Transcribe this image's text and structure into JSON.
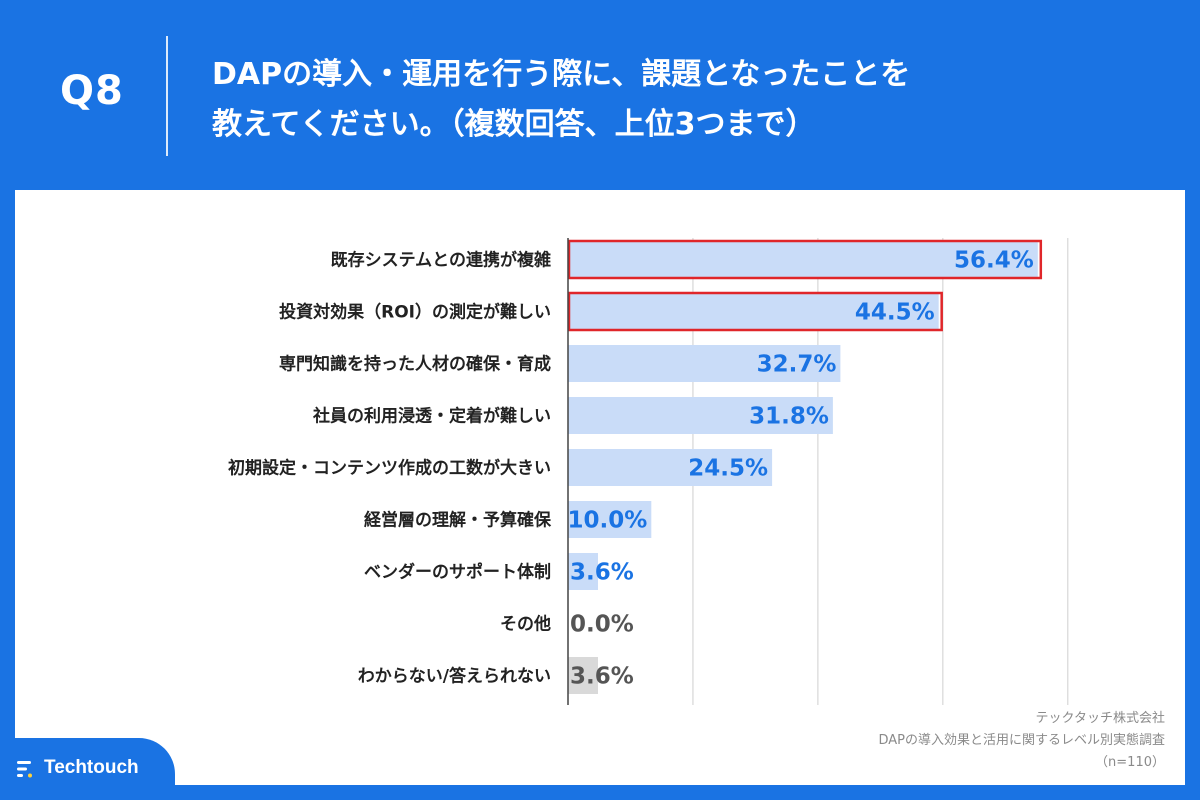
{
  "header": {
    "question_number": "Q8",
    "title_line1": "DAPの導入・運用を行う際に、課題となったことを",
    "title_line2": "教えてください。（複数回答、上位3つまで）"
  },
  "chart_data": {
    "type": "bar",
    "orientation": "horizontal",
    "categories": [
      "既存システムとの連携が複雑",
      "投資対効果（ROI）の測定が難しい",
      "専門知識を持った人材の確保・育成",
      "社員の利用浸透・定着が難しい",
      "初期設定・コンテンツ作成の工数が大きい",
      "経営層の理解・予算確保",
      "ベンダーのサポート体制",
      "その他",
      "わからない/答えられない"
    ],
    "values": [
      56.4,
      44.5,
      32.7,
      31.8,
      24.5,
      10.0,
      3.6,
      0.0,
      3.6
    ],
    "value_labels": [
      "56.4%",
      "44.5%",
      "32.7%",
      "31.8%",
      "24.5%",
      "10.0%",
      "3.6%",
      "0.0%",
      "3.6%"
    ],
    "highlighted": [
      true,
      true,
      false,
      false,
      false,
      false,
      false,
      false,
      false
    ],
    "muted": [
      false,
      false,
      false,
      false,
      false,
      false,
      false,
      true,
      true
    ],
    "xlim": [
      0,
      60
    ],
    "grid": true,
    "colors": {
      "bar": "#c9dcf8",
      "bar_muted": "#d9d9d9",
      "value_text": "#1a73e3",
      "value_text_muted": "#555555",
      "highlight_border": "#e0262a",
      "gridline": "#cfcfcf"
    }
  },
  "source": {
    "company": "テックタッチ株式会社",
    "survey": "DAPの導入効果と活用に関するレベル別実態調査",
    "sample": "（n=110）"
  },
  "brand": {
    "name": "Techtouch",
    "icon": "techtouch-logo-icon",
    "color": "#1a73e3"
  }
}
